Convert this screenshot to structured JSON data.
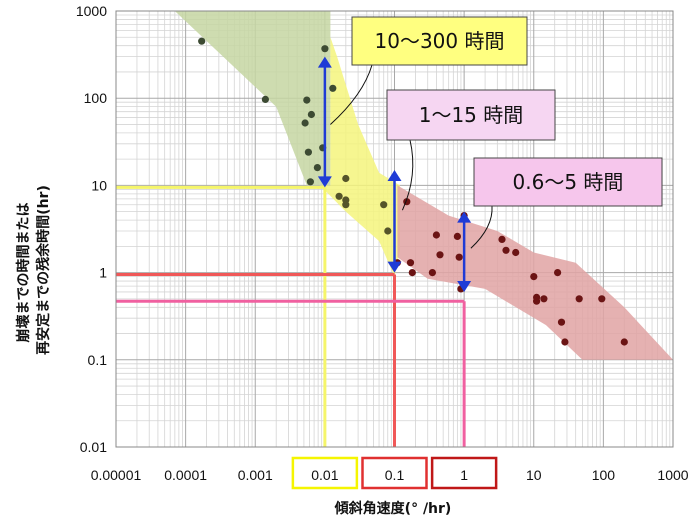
{
  "chart_data": {
    "type": "scatter",
    "x_scale": "log",
    "y_scale": "log",
    "xlim": [
      1e-05,
      1000
    ],
    "ylim": [
      0.01,
      1000
    ],
    "grid": true,
    "xlabel": "傾斜角速度(° /hr)",
    "ylabel_lines": [
      "崩壊までの時間または",
      "再安定までの残余時間(hr)"
    ],
    "x_ticks": [
      {
        "value": 1e-05,
        "label": "0.00001"
      },
      {
        "value": 0.0001,
        "label": "0.0001"
      },
      {
        "value": 0.001,
        "label": "0.001"
      },
      {
        "value": 0.01,
        "label": "0.01"
      },
      {
        "value": 0.1,
        "label": "0.1"
      },
      {
        "value": 1,
        "label": "1"
      },
      {
        "value": 10,
        "label": "10"
      },
      {
        "value": 100,
        "label": "100"
      },
      {
        "value": 1000,
        "label": "1000"
      }
    ],
    "y_ticks": [
      {
        "value": 1000,
        "label": "1000"
      },
      {
        "value": 100,
        "label": "100"
      },
      {
        "value": 10,
        "label": "10"
      },
      {
        "value": 1,
        "label": "1"
      },
      {
        "value": 0.1,
        "label": "0.1"
      },
      {
        "value": 0.01,
        "label": "0.01"
      }
    ],
    "boxed_x_ticks": [
      {
        "value": 0.01,
        "color": "#f5f500"
      },
      {
        "value": 0.1,
        "color": "#e03030"
      },
      {
        "value": 1,
        "color": "#c01818"
      }
    ],
    "bands": [
      {
        "name": "green",
        "color": "#c6d6a2",
        "polygon": [
          [
            7e-05,
            1000
          ],
          [
            0.012,
            1000
          ],
          [
            0.012,
            10
          ],
          [
            0.0055,
            10
          ],
          [
            0.002,
            80
          ]
        ]
      },
      {
        "name": "yellow",
        "color": "#f4f47c",
        "polygon": [
          [
            0.012,
            500
          ],
          [
            0.015,
            300
          ],
          [
            0.03,
            50
          ],
          [
            0.06,
            14
          ],
          [
            0.12,
            10
          ],
          [
            0.12,
            1.8
          ],
          [
            0.1,
            0.9
          ],
          [
            0.06,
            2.3
          ],
          [
            0.02,
            5
          ],
          [
            0.0085,
            10
          ],
          [
            0.012,
            10
          ]
        ]
      },
      {
        "name": "red",
        "color": "#e0a3a3",
        "polygon": [
          [
            0.11,
            10
          ],
          [
            0.6,
            4.5
          ],
          [
            3,
            3
          ],
          [
            10,
            1.7
          ],
          [
            40,
            1.3
          ],
          [
            200,
            0.4
          ],
          [
            1000,
            0.1
          ],
          [
            50,
            0.1
          ],
          [
            15,
            0.25
          ],
          [
            2,
            0.65
          ],
          [
            0.3,
            0.85
          ],
          [
            0.11,
            1.5
          ]
        ]
      }
    ],
    "series": [
      {
        "color": "#3d4b33",
        "points": [
          [
            0.00017,
            450
          ],
          [
            0.0014,
            97
          ],
          [
            0.0055,
            95
          ],
          [
            0.0052,
            52
          ],
          [
            0.0064,
            65
          ],
          [
            0.0058,
            24
          ],
          [
            0.0078,
            16
          ],
          [
            0.0093,
            27
          ],
          [
            0.0062,
            11
          ],
          [
            0.01,
            370
          ],
          [
            0.013,
            130
          ]
        ]
      },
      {
        "color": "#55542a",
        "points": [
          [
            0.016,
            7.5
          ],
          [
            0.02,
            12
          ],
          [
            0.02,
            6
          ],
          [
            0.02,
            6.8
          ],
          [
            0.07,
            6
          ],
          [
            0.08,
            3
          ]
        ]
      },
      {
        "color": "#6b1414",
        "points": [
          [
            0.11,
            1.3
          ],
          [
            0.15,
            6.5
          ],
          [
            0.17,
            1.3
          ],
          [
            0.18,
            1
          ],
          [
            0.35,
            1
          ],
          [
            0.4,
            2.7
          ],
          [
            0.45,
            1.6
          ],
          [
            0.8,
            2.6
          ],
          [
            0.85,
            1.5
          ],
          [
            0.9,
            0.65
          ],
          [
            1,
            4.5
          ],
          [
            3.5,
            2.4
          ],
          [
            4,
            1.8
          ],
          [
            5.5,
            1.7
          ],
          [
            10,
            0.9
          ],
          [
            11,
            0.47
          ],
          [
            11,
            0.52
          ],
          [
            14,
            0.5
          ],
          [
            22,
            1
          ],
          [
            25,
            0.27
          ],
          [
            28,
            0.16
          ],
          [
            45,
            0.5
          ],
          [
            95,
            0.5
          ],
          [
            200,
            0.16
          ]
        ]
      }
    ],
    "reference_lines": [
      {
        "x": 0.01,
        "y": 9.5,
        "color": "#f5f56a"
      },
      {
        "x": 0.1,
        "y": 0.95,
        "color": "#f05858"
      },
      {
        "x": 1,
        "y": 0.47,
        "color": "#f060a0"
      }
    ],
    "ranges": [
      {
        "x": 0.01,
        "y_low": 9.5,
        "y_high": 300,
        "color": "#1f3bd6"
      },
      {
        "x": 0.1,
        "y_low": 1,
        "y_high": 15,
        "color": "#1f3bd6"
      },
      {
        "x": 1,
        "y_low": 0.6,
        "y_high": 5,
        "color": "#1f3bd6"
      }
    ],
    "annotations": [
      {
        "text": "10～300 時間",
        "fill": "#ffff80",
        "anchor": [
          0.012,
          50
        ]
      },
      {
        "text": "1～15 時間",
        "fill": "#f6d6f2",
        "anchor": [
          0.13,
          5.2
        ]
      },
      {
        "text": "0.6～5 時間",
        "fill": "#f6c6ec",
        "anchor": [
          1.25,
          1.9
        ]
      }
    ]
  }
}
